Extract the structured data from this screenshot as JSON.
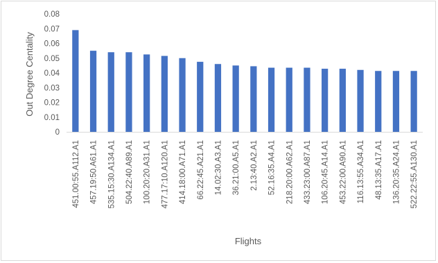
{
  "chart_data": {
    "type": "bar",
    "title": "",
    "xlabel": "Flights",
    "ylabel": "Out Degree Centality",
    "ylim": [
      0,
      0.08
    ],
    "yticks": [
      "0",
      "0.01",
      "0.02",
      "0.03",
      "0.04",
      "0.05",
      "0.06",
      "0.07",
      "0.08"
    ],
    "grid": false,
    "legend": "none",
    "bar_color": "#4472C4",
    "categories": [
      "451.00:55.A112.A1",
      "457.19:50.A61.A1",
      "535.15:30.A134.A1",
      "504.22:40.A89.A1",
      "100.20:20.A31.A1",
      "477.17:10.A120.A1",
      "414.18:00.A71.A1",
      "66.22:45.A21.A1",
      "14.02:30.A3.A1",
      "36.21:00.A5.A1",
      "2.13:40.A2.A1",
      "52.16:35.A4.A1",
      "218.20:00.A62.A1",
      "433.23:00.A87.A1",
      "106.20:45.A14.A1",
      "453.22:00.A90.A1",
      "116.13:55.A34.A1",
      "48.13:35.A17.A1",
      "136.20:35.A24.A1",
      "522.22:55.A130.A1"
    ],
    "values": [
      0.069,
      0.055,
      0.054,
      0.054,
      0.0525,
      0.0515,
      0.05,
      0.0475,
      0.046,
      0.045,
      0.0445,
      0.0435,
      0.0435,
      0.0435,
      0.0428,
      0.0428,
      0.042,
      0.0413,
      0.0413,
      0.0413
    ]
  }
}
